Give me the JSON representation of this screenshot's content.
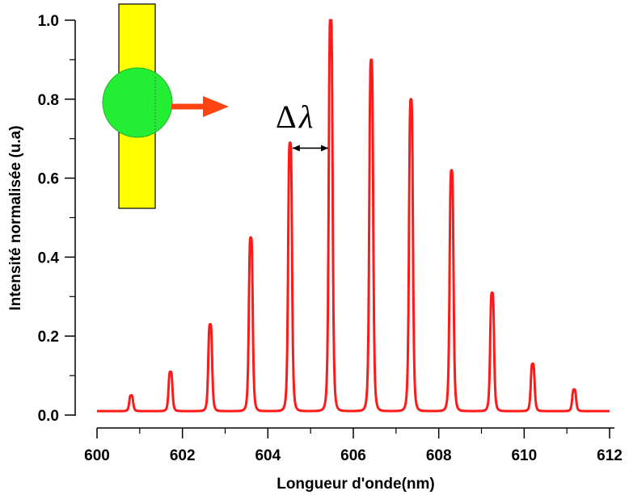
{
  "chart_data": {
    "type": "line",
    "xlabel": "Longueur d'onde(nm)",
    "ylabel": "Intensité normalisée (u.a)",
    "xlim": [
      600,
      612
    ],
    "ylim": [
      0,
      1.0
    ],
    "xticks": [
      "600",
      "602",
      "604",
      "606",
      "608",
      "610",
      "612"
    ],
    "yticks": [
      "0.0",
      "0.2",
      "0.4",
      "0.6",
      "0.8",
      "1.0"
    ],
    "grid": false,
    "legend": "none",
    "series": [
      {
        "color": "#ff1a1a",
        "baseline": 0.01,
        "peaks": [
          {
            "x": 600.8,
            "y": 0.04
          },
          {
            "x": 601.72,
            "y": 0.1
          },
          {
            "x": 602.65,
            "y": 0.22
          },
          {
            "x": 603.6,
            "y": 0.44
          },
          {
            "x": 604.52,
            "y": 0.68
          },
          {
            "x": 605.47,
            "y": 1.0
          },
          {
            "x": 606.42,
            "y": 0.89
          },
          {
            "x": 607.35,
            "y": 0.79
          },
          {
            "x": 608.3,
            "y": 0.61
          },
          {
            "x": 609.25,
            "y": 0.3
          },
          {
            "x": 610.2,
            "y": 0.12
          },
          {
            "x": 611.17,
            "y": 0.055
          }
        ]
      }
    ],
    "annotations": [
      {
        "text": "Δ",
        "text2": "λ",
        "arrow_from": 604.52,
        "arrow_to": 605.47,
        "y": 0.68
      }
    ],
    "inset": {
      "bar_color": "#ffff00",
      "circle_color": "#00ff33",
      "arrow_color": "#ff4411"
    }
  }
}
